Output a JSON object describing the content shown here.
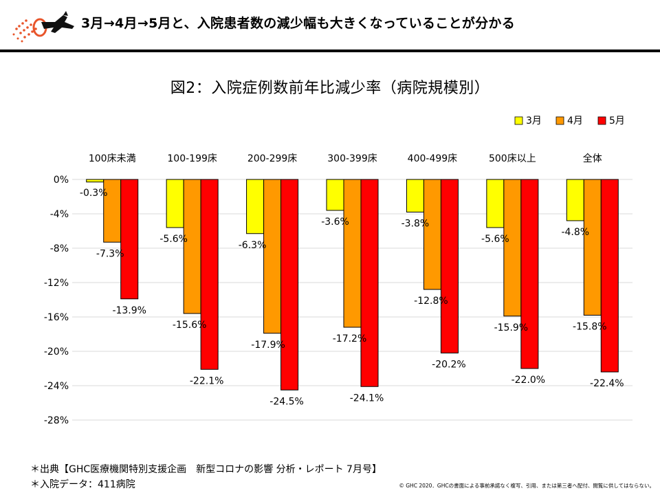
{
  "header": {
    "headline": "3月→4月→5月と、入院患者数の減少幅も大きくなっていることが分かる"
  },
  "colors": {
    "march": "#ffff00",
    "april": "#ff9900",
    "may": "#ff0000",
    "gridline": "#d9d9d9",
    "bar_outline": "#000000"
  },
  "chart_data": {
    "type": "bar",
    "title": "図2：入院症例数前年比減少率（病院規模別）",
    "categories": [
      "100床未満",
      "100-199床",
      "200-299床",
      "300-399床",
      "400-499床",
      "500床以上",
      "全体"
    ],
    "series": [
      {
        "name": "3月",
        "color": "#ffff00",
        "values": [
          -0.3,
          -5.6,
          -6.3,
          -3.6,
          -3.8,
          -5.6,
          -4.8
        ]
      },
      {
        "name": "4月",
        "color": "#ff9900",
        "values": [
          -7.3,
          -15.6,
          -17.9,
          -17.2,
          -12.8,
          -15.9,
          -15.8
        ]
      },
      {
        "name": "5月",
        "color": "#ff0000",
        "values": [
          -13.9,
          -22.1,
          -24.5,
          -24.1,
          -20.2,
          -22.0,
          -22.4
        ]
      }
    ],
    "yticks": [
      "0%",
      "-4%",
      "-8%",
      "-12%",
      "-16%",
      "-20%",
      "-24%",
      "-28%"
    ],
    "ylim": [
      -28,
      0
    ],
    "grid": true,
    "legend_position": "top-right",
    "category_labels_position": "top",
    "value_format": "percent_one_decimal"
  },
  "footer": {
    "source": "＊出典【GHC医療機関特別支援企画　新型コロナの影響 分析・レポート 7月号】",
    "note": "＊入院データ：411病院",
    "copyright": "© GHC 2020．GHCの書面による事前承諾なく複写、引用、または第三者へ配付、閲覧に供してはならない。"
  }
}
